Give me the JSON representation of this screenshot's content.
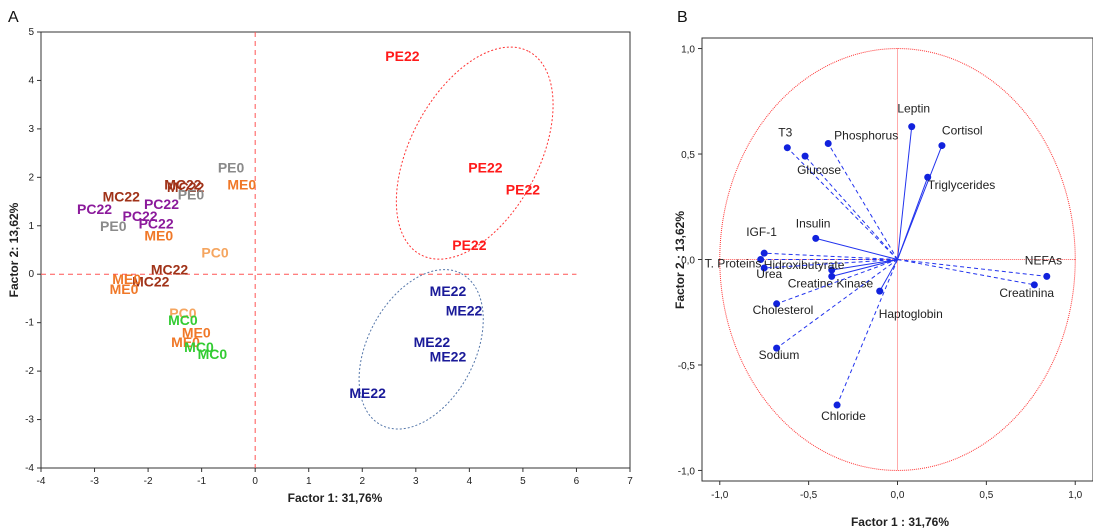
{
  "chart_data": [
    {
      "type": "scatter",
      "panel_label": "A",
      "xlabel": "Factor 1: 31,76%",
      "ylabel": "Factor 2: 13,62%",
      "xlim": [
        -4,
        7
      ],
      "ylim": [
        -4,
        5
      ],
      "x_ticks": [
        "-4",
        "-3",
        "-2",
        "-1",
        "0",
        "1",
        "2",
        "3",
        "4",
        "5",
        "6",
        "7"
      ],
      "y_ticks": [
        "-4",
        "-3",
        "-2",
        "-1",
        "0",
        "1",
        "2",
        "3",
        "4",
        "5"
      ],
      "colors": {
        "PE": "#ff1a1a",
        "ME": "#1a1a99",
        "MC": "#a03218",
        "PC": "#8b1a9b",
        "PE0": "#8a8a8a",
        "ME0": "#f07828",
        "PC0": "#f5a55f",
        "MC0": "#33cc33"
      },
      "points": [
        {
          "label": "PE22",
          "x": 2.75,
          "y": 4.5,
          "color": "#ff1a1a"
        },
        {
          "label": "PE22",
          "x": 4.3,
          "y": 2.2,
          "color": "#ff1a1a"
        },
        {
          "label": "PE22",
          "x": 5.0,
          "y": 1.75,
          "color": "#ff1a1a"
        },
        {
          "label": "PE22",
          "x": 4.0,
          "y": 0.6,
          "color": "#ff1a1a"
        },
        {
          "label": "ME22",
          "x": 3.6,
          "y": -0.35,
          "color": "#1a1a99"
        },
        {
          "label": "ME22",
          "x": 3.9,
          "y": -0.75,
          "color": "#1a1a99"
        },
        {
          "label": "ME22",
          "x": 3.3,
          "y": -1.4,
          "color": "#1a1a99"
        },
        {
          "label": "ME22",
          "x": 3.6,
          "y": -1.7,
          "color": "#1a1a99"
        },
        {
          "label": "ME22",
          "x": 2.1,
          "y": -2.45,
          "color": "#1a1a99"
        },
        {
          "label": "PE0",
          "x": -0.45,
          "y": 2.2,
          "color": "#8a8a8a"
        },
        {
          "label": "ME0",
          "x": -0.25,
          "y": 1.85,
          "color": "#f07828"
        },
        {
          "label": "MC22",
          "x": -1.35,
          "y": 1.85,
          "color": "#a03218"
        },
        {
          "label": "MC22",
          "x": -1.3,
          "y": 1.8,
          "color": "#a03218"
        },
        {
          "label": "PE0",
          "x": -1.2,
          "y": 1.65,
          "color": "#8a8a8a"
        },
        {
          "label": "MC22",
          "x": -2.5,
          "y": 1.6,
          "color": "#a03218"
        },
        {
          "label": "PC22",
          "x": -3.0,
          "y": 1.35,
          "color": "#8b1a9b"
        },
        {
          "label": "PC22",
          "x": -1.75,
          "y": 1.45,
          "color": "#8b1a9b"
        },
        {
          "label": "PC22",
          "x": -2.15,
          "y": 1.2,
          "color": "#8b1a9b"
        },
        {
          "label": "PC22",
          "x": -1.85,
          "y": 1.05,
          "color": "#8b1a9b"
        },
        {
          "label": "PE0",
          "x": -2.65,
          "y": 1.0,
          "color": "#8a8a8a"
        },
        {
          "label": "ME0",
          "x": -1.8,
          "y": 0.8,
          "color": "#f07828"
        },
        {
          "label": "PC0",
          "x": -0.75,
          "y": 0.45,
          "color": "#f5a55f"
        },
        {
          "label": "MC22",
          "x": -1.6,
          "y": 0.1,
          "color": "#a03218"
        },
        {
          "label": "MC22",
          "x": -1.95,
          "y": -0.15,
          "color": "#a03218"
        },
        {
          "label": "ME0",
          "x": -2.4,
          "y": -0.1,
          "color": "#f07828"
        },
        {
          "label": "ME0",
          "x": -2.45,
          "y": -0.3,
          "color": "#f07828"
        },
        {
          "label": "PC0",
          "x": -1.35,
          "y": -0.8,
          "color": "#f5a55f"
        },
        {
          "label": "MC0",
          "x": -1.35,
          "y": -0.95,
          "color": "#33cc33"
        },
        {
          "label": "ME0",
          "x": -1.1,
          "y": -1.2,
          "color": "#f07828"
        },
        {
          "label": "ME0",
          "x": -1.3,
          "y": -1.4,
          "color": "#f07828"
        },
        {
          "label": "MC0",
          "x": -1.05,
          "y": -1.5,
          "color": "#33cc33"
        },
        {
          "label": "MC0",
          "x": -0.8,
          "y": -1.65,
          "color": "#33cc33"
        }
      ],
      "ellipses": [
        {
          "group": "PE22",
          "cx": 4.1,
          "cy": 2.5,
          "rx": 2.15,
          "ry": 1.2,
          "angle_deg": 62,
          "color": "#ff3333"
        },
        {
          "group": "ME22",
          "cx": 3.1,
          "cy": -1.55,
          "rx": 1.6,
          "ry": 1.0,
          "angle_deg": 62,
          "color": "#5577aa"
        }
      ]
    },
    {
      "type": "scatter",
      "panel_label": "B",
      "xlabel": "Factor 1 : 31,76%",
      "ylabel": "Factor 2 : 13,62%",
      "xlim": [
        -1.1,
        1.1
      ],
      "ylim": [
        -1.05,
        1.05
      ],
      "x_ticks": [
        "-1,0",
        "-0,5",
        "0,0",
        "0,5",
        "1,0"
      ],
      "y_ticks": [
        "-1,0",
        "-0,5",
        "0,0",
        "0,5",
        "1,0"
      ],
      "unit_circle_radius": 1.0,
      "variables": [
        {
          "label": "T3",
          "x": -0.62,
          "y": 0.53
        },
        {
          "label": "Glucose",
          "x": -0.52,
          "y": 0.49
        },
        {
          "label": "Phosphorus",
          "x": -0.39,
          "y": 0.55
        },
        {
          "label": "Leptin",
          "x": 0.08,
          "y": 0.63
        },
        {
          "label": "Cortisol",
          "x": 0.25,
          "y": 0.54
        },
        {
          "label": "Triglycerides",
          "x": 0.17,
          "y": 0.39
        },
        {
          "label": "Insulin",
          "x": -0.46,
          "y": 0.1
        },
        {
          "label": "IGF-1",
          "x": -0.75,
          "y": 0.03
        },
        {
          "label": "T. Proteins",
          "x": -0.77,
          "y": 0.0
        },
        {
          "label": "Hidroxibutyrate",
          "x": -0.37,
          "y": -0.05
        },
        {
          "label": "Urea",
          "x": -0.75,
          "y": -0.04
        },
        {
          "label": "Creatine Kinase",
          "x": -0.37,
          "y": -0.08
        },
        {
          "label": "NEFAs",
          "x": 0.84,
          "y": -0.08
        },
        {
          "label": "Creatinina",
          "x": 0.77,
          "y": -0.12
        },
        {
          "label": "Haptoglobin",
          "x": -0.1,
          "y": -0.15
        },
        {
          "label": "Cholesterol",
          "x": -0.68,
          "y": -0.21
        },
        {
          "label": "Sodium",
          "x": -0.68,
          "y": -0.42
        },
        {
          "label": "Chloride",
          "x": -0.34,
          "y": -0.69
        }
      ]
    }
  ]
}
